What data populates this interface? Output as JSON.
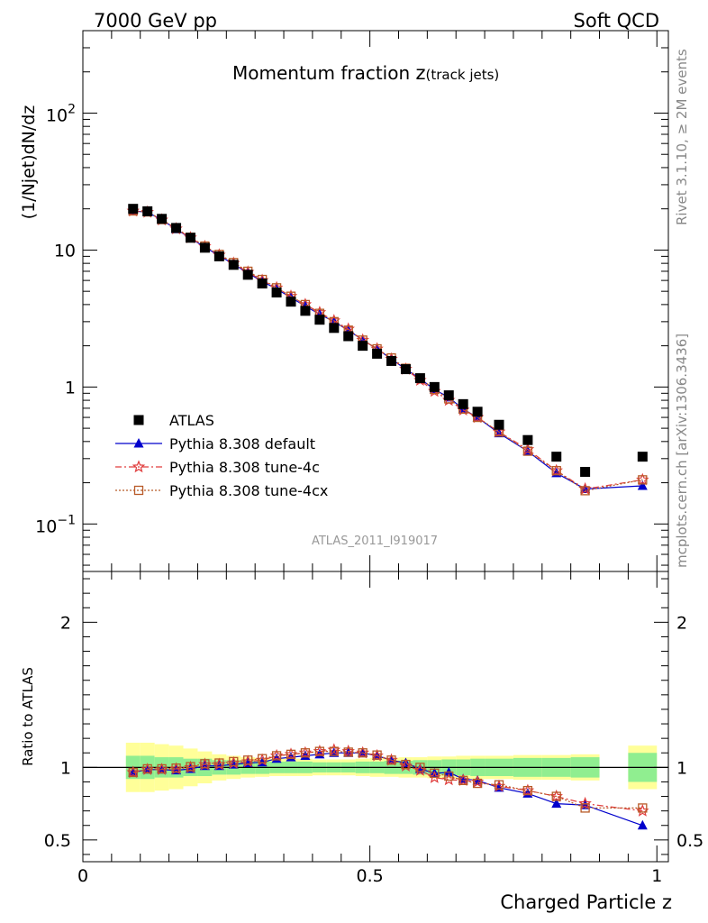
{
  "header": {
    "left": "7000 GeV pp",
    "right": "Soft QCD"
  },
  "side_text": {
    "rivet": "Rivet 3.1.10, ≥ 2M events",
    "mcplots": "mcplots.cern.ch [arXiv:1306.3436]"
  },
  "main": {
    "title": "Momentum fraction ",
    "title_var": "z",
    "title_sub": "(track jets)",
    "ylabel": "(1/Njet)dN/dz",
    "analysis_id": "ATLAS_2011_I919017",
    "yticks": [
      {
        "value": 100,
        "label": "10",
        "sup": "2"
      },
      {
        "value": 10,
        "label": "10",
        "sup": ""
      },
      {
        "value": 1,
        "label": "1",
        "sup": ""
      },
      {
        "value": 0.1,
        "label": "10",
        "sup": "−1"
      }
    ]
  },
  "ratio": {
    "ylabel": "Ratio to ATLAS",
    "yticks": [
      {
        "value": 0.5,
        "label": "0.5"
      },
      {
        "value": 1,
        "label": "1"
      },
      {
        "value": 2,
        "label": "2"
      }
    ]
  },
  "xaxis": {
    "label": "Charged Particle z",
    "ticks": [
      {
        "value": 0,
        "label": "0"
      },
      {
        "value": 0.5,
        "label": "0.5"
      },
      {
        "value": 1,
        "label": "1"
      }
    ]
  },
  "legend": [
    {
      "label": "ATLAS",
      "color": "#000000",
      "style": "data"
    },
    {
      "label": "Pythia 8.308 default",
      "color": "#0000cc",
      "style": "triangle"
    },
    {
      "label": "Pythia 8.308 tune-4c",
      "color": "#e03c3c",
      "style": "star"
    },
    {
      "label": "Pythia 8.308 tune-4cx",
      "color": "#b85a28",
      "style": "square"
    }
  ],
  "colors": {
    "data": "#000000",
    "default": "#0000cc",
    "tune4c": "#e03c3c",
    "tune4cx": "#b85a28",
    "band_inner": "#90ee90",
    "band_outer": "#ffff99"
  },
  "chart_data": {
    "type": "scatter",
    "x_scale": "linear",
    "y_scale": "log",
    "xlim": [
      0,
      1.02
    ],
    "ylim": [
      0.045,
      400
    ],
    "ratio_ylim": [
      0.35,
      2.35
    ],
    "x": [
      0.0875,
      0.1125,
      0.1375,
      0.1625,
      0.1875,
      0.2125,
      0.2375,
      0.2625,
      0.2875,
      0.3125,
      0.3375,
      0.3625,
      0.3875,
      0.4125,
      0.4375,
      0.4625,
      0.4875,
      0.5125,
      0.5375,
      0.5625,
      0.5875,
      0.6125,
      0.6375,
      0.6625,
      0.6875,
      0.725,
      0.775,
      0.825,
      0.875,
      0.975
    ],
    "series": [
      {
        "name": "ATLAS",
        "values": [
          20.0,
          19.2,
          16.9,
          14.5,
          12.3,
          10.4,
          9.0,
          7.8,
          6.6,
          5.7,
          4.9,
          4.2,
          3.6,
          3.1,
          2.7,
          2.35,
          2.0,
          1.75,
          1.55,
          1.35,
          1.16,
          1.0,
          0.87,
          0.75,
          0.66,
          0.53,
          0.41,
          0.31,
          0.24,
          0.31
        ],
        "band_inner_half": [
          0.08,
          0.08,
          0.07,
          0.07,
          0.06,
          0.06,
          0.05,
          0.05,
          0.045,
          0.045,
          0.04,
          0.04,
          0.04,
          0.035,
          0.035,
          0.035,
          0.04,
          0.04,
          0.045,
          0.045,
          0.05,
          0.05,
          0.055,
          0.055,
          0.06,
          0.06,
          0.065,
          0.065,
          0.07,
          0.1
        ],
        "band_outer_half": [
          0.17,
          0.17,
          0.16,
          0.15,
          0.13,
          0.11,
          0.09,
          0.08,
          0.07,
          0.065,
          0.06,
          0.06,
          0.06,
          0.055,
          0.055,
          0.055,
          0.06,
          0.065,
          0.065,
          0.07,
          0.07,
          0.075,
          0.075,
          0.08,
          0.08,
          0.08,
          0.085,
          0.085,
          0.09,
          0.15
        ]
      },
      {
        "name": "Pythia 8.308 default",
        "values": [
          19.3,
          18.9,
          16.6,
          14.2,
          12.2,
          10.5,
          9.1,
          7.9,
          6.8,
          5.9,
          5.2,
          4.5,
          3.9,
          3.4,
          3.0,
          2.6,
          2.2,
          1.9,
          1.6,
          1.35,
          1.15,
          0.96,
          0.84,
          0.69,
          0.6,
          0.46,
          0.34,
          0.235,
          0.18,
          0.19
        ],
        "ratio": [
          0.965,
          0.985,
          0.985,
          0.98,
          0.99,
          1.01,
          1.01,
          1.02,
          1.03,
          1.035,
          1.06,
          1.07,
          1.08,
          1.09,
          1.1,
          1.1,
          1.1,
          1.08,
          1.05,
          1.03,
          0.99,
          0.96,
          0.965,
          0.92,
          0.91,
          0.86,
          0.82,
          0.75,
          0.74,
          0.6
        ]
      },
      {
        "name": "Pythia 8.308 tune-4c",
        "values": [
          19.3,
          18.9,
          16.6,
          14.3,
          12.3,
          10.6,
          9.2,
          8.0,
          6.9,
          6.0,
          5.3,
          4.6,
          4.0,
          3.5,
          3.05,
          2.65,
          2.2,
          1.9,
          1.6,
          1.35,
          1.12,
          0.93,
          0.8,
          0.68,
          0.6,
          0.47,
          0.35,
          0.245,
          0.18,
          0.21
        ],
        "ratio": [
          0.965,
          0.985,
          0.985,
          0.99,
          1.0,
          1.02,
          1.02,
          1.03,
          1.04,
          1.05,
          1.08,
          1.09,
          1.1,
          1.11,
          1.12,
          1.11,
          1.1,
          1.08,
          1.05,
          1.01,
          0.98,
          0.93,
          0.915,
          0.91,
          0.9,
          0.87,
          0.84,
          0.8,
          0.75,
          0.7
        ]
      },
      {
        "name": "Pythia 8.308 tune-4cx",
        "values": [
          19.3,
          19.0,
          16.7,
          14.4,
          12.4,
          10.7,
          9.3,
          8.1,
          7.0,
          6.1,
          5.3,
          4.6,
          4.0,
          3.45,
          3.0,
          2.6,
          2.2,
          1.9,
          1.63,
          1.37,
          1.16,
          0.96,
          0.82,
          0.69,
          0.6,
          0.47,
          0.34,
          0.245,
          0.175,
          0.21
        ],
        "ratio": [
          0.965,
          0.99,
          0.99,
          0.995,
          1.005,
          1.025,
          1.03,
          1.04,
          1.05,
          1.06,
          1.08,
          1.09,
          1.1,
          1.11,
          1.11,
          1.105,
          1.1,
          1.085,
          1.05,
          1.02,
          1.0,
          0.96,
          0.94,
          0.91,
          0.89,
          0.88,
          0.84,
          0.8,
          0.72,
          0.72
        ]
      }
    ]
  }
}
